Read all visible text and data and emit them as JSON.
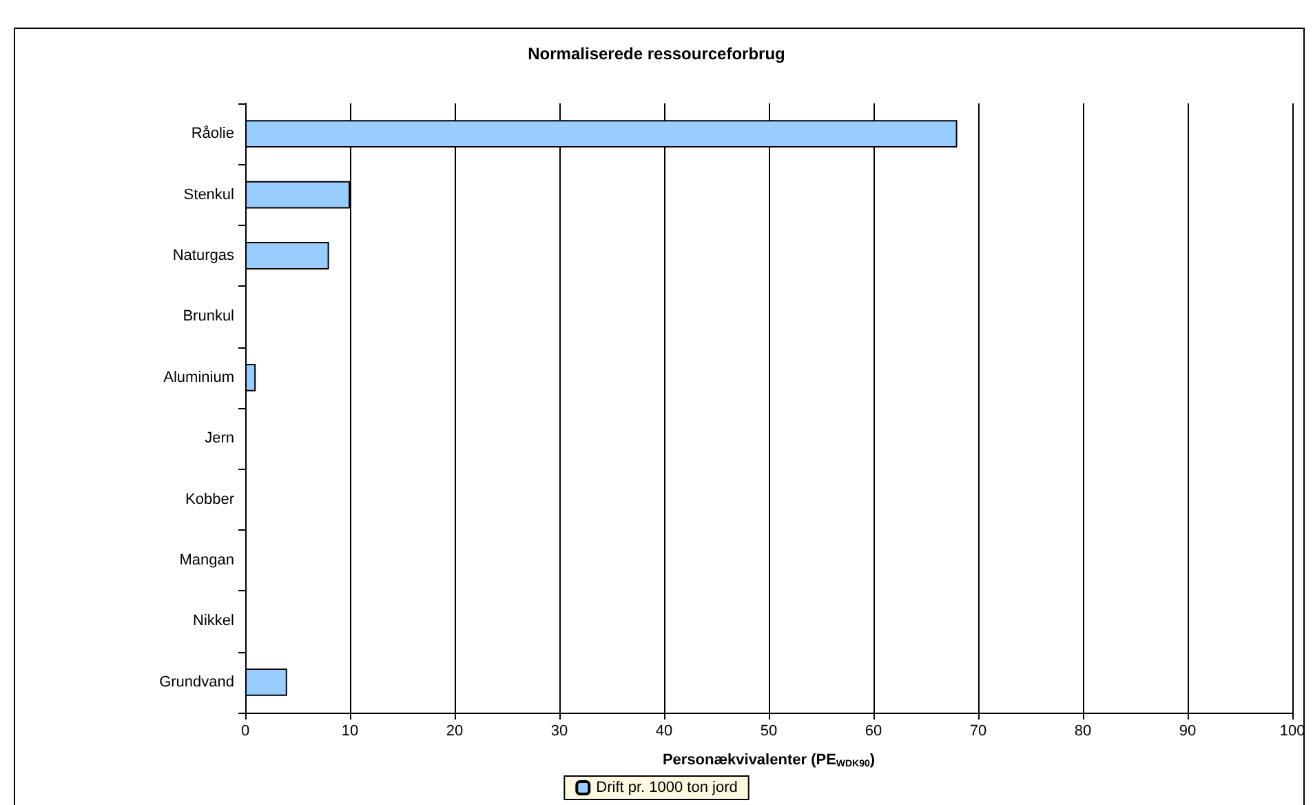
{
  "chart_data": {
    "type": "bar",
    "orientation": "horizontal",
    "title": "Normaliserede ressourceforbrug",
    "xlabel": "Personækvivalenter (PE$_{WDK90}$)",
    "categories": [
      "Råolie",
      "Stenkul",
      "Naturgas",
      "Brunkul",
      "Aluminium",
      "Jern",
      "Kobber",
      "Mangan",
      "Nikkel",
      "Grundvand"
    ],
    "series": [
      {
        "name": "Drift pr. 1000 ton jord",
        "color": "#99ccff",
        "values": [
          68,
          10,
          8,
          0,
          1,
          0,
          0,
          0,
          0,
          4
        ]
      }
    ],
    "xlim": [
      0,
      100
    ],
    "xticks": [
      0,
      10,
      20,
      30,
      40,
      50,
      60,
      70,
      80,
      90,
      100
    ],
    "grid": "x",
    "legend": "bottom"
  }
}
